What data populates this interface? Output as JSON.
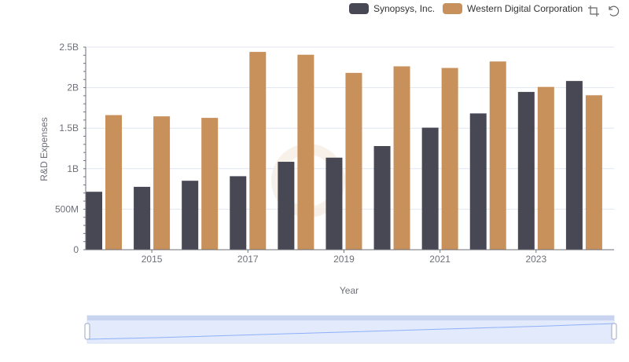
{
  "chart_data": {
    "type": "bar",
    "xlabel": "Year",
    "ylabel": "R&D Expenses",
    "x_ticks": [
      "2015",
      "2017",
      "2019",
      "2021",
      "2023"
    ],
    "y_ticks": [
      "0",
      "500M",
      "1B",
      "1.5B",
      "2B",
      "2.5B"
    ],
    "ylim": [
      0,
      2500000000
    ],
    "categories": [
      "2014",
      "2015",
      "2016",
      "2017",
      "2018",
      "2019",
      "2020",
      "2021",
      "2022",
      "2023",
      "2024"
    ],
    "series": [
      {
        "name": "Synopsys, Inc.",
        "color": "#484855",
        "values": [
          715000000,
          776000000,
          851000000,
          907000000,
          1085000000,
          1136000000,
          1279000000,
          1506000000,
          1682000000,
          1947000000,
          2082000000
        ]
      },
      {
        "name": "Western Digital Corporation",
        "color": "#c8915c",
        "values": [
          1661000000,
          1646000000,
          1627000000,
          2441000000,
          2406000000,
          2182000000,
          2263000000,
          2243000000,
          2323000000,
          2009000000,
          1906000000
        ]
      }
    ],
    "legend_position": "top-right",
    "grid": true
  }
}
